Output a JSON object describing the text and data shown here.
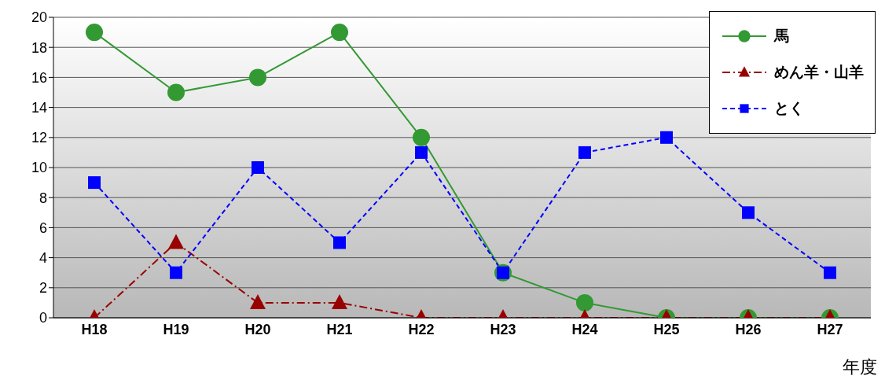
{
  "chart_data": {
    "type": "line",
    "xlabel": "年度",
    "categories": [
      "H18",
      "H19",
      "H20",
      "H21",
      "H22",
      "H23",
      "H24",
      "H25",
      "H26",
      "H27"
    ],
    "series": [
      {
        "name": "馬",
        "color": "#339933",
        "marker": "circle",
        "line_style": "solid",
        "values": [
          19,
          15,
          16,
          19,
          12,
          3,
          1,
          0,
          0,
          0
        ]
      },
      {
        "name": "めん羊・山羊",
        "color": "#990000",
        "marker": "triangle",
        "line_style": "dashdot",
        "values": [
          0,
          5,
          1,
          1,
          0,
          0,
          0,
          0,
          0,
          0
        ]
      },
      {
        "name": "とく",
        "color": "#0000ff",
        "marker": "square",
        "line_style": "dashed",
        "values": [
          9,
          3,
          10,
          5,
          11,
          3,
          11,
          12,
          7,
          3
        ]
      }
    ],
    "ylim": [
      0,
      20
    ],
    "yticks": [
      0,
      2,
      4,
      6,
      8,
      10,
      12,
      14,
      16,
      18,
      20
    ],
    "grid": "y",
    "legend": "top right"
  }
}
